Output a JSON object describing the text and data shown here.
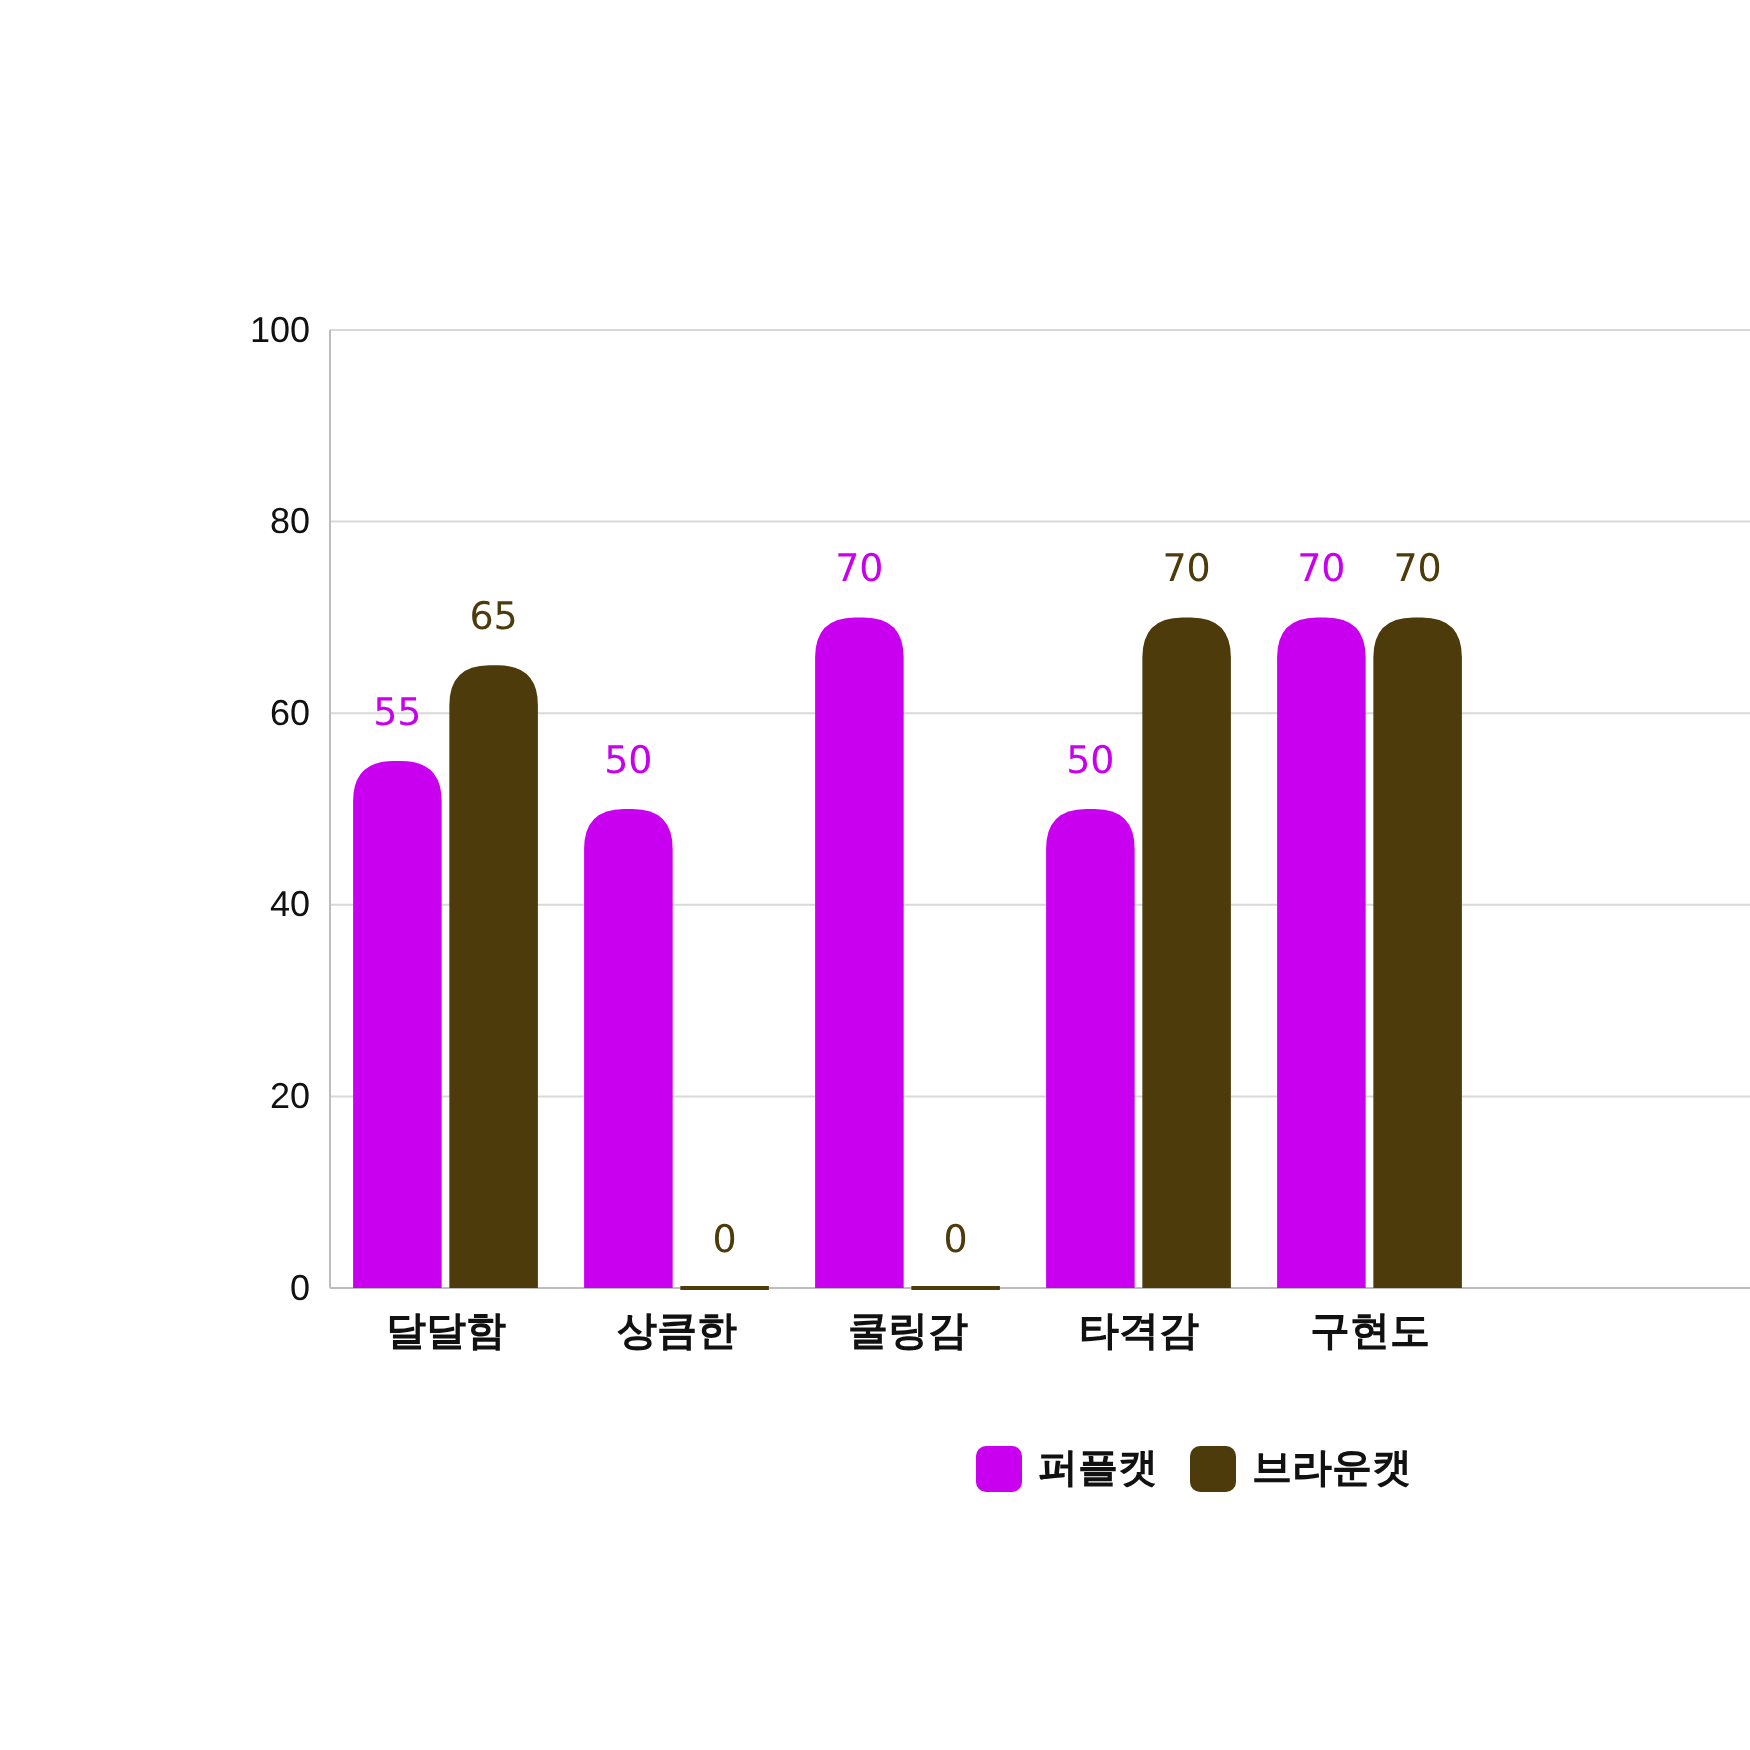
{
  "chart_data": {
    "type": "bar",
    "categories": [
      "달달함",
      "상큼한",
      "쿨링감",
      "타격감",
      "구현도"
    ],
    "series": [
      {
        "name": "퍼플캣",
        "color": "#c900ef",
        "values": [
          55,
          50,
          70,
          50,
          70
        ]
      },
      {
        "name": "브라운캣",
        "color": "#4d3b0b",
        "values": [
          65,
          0,
          0,
          70,
          70
        ]
      }
    ],
    "ylim": [
      0,
      100
    ],
    "yticks": [
      0,
      20,
      40,
      60,
      80,
      100
    ],
    "grid": "y",
    "data_labels": true,
    "legend": "bottom"
  }
}
